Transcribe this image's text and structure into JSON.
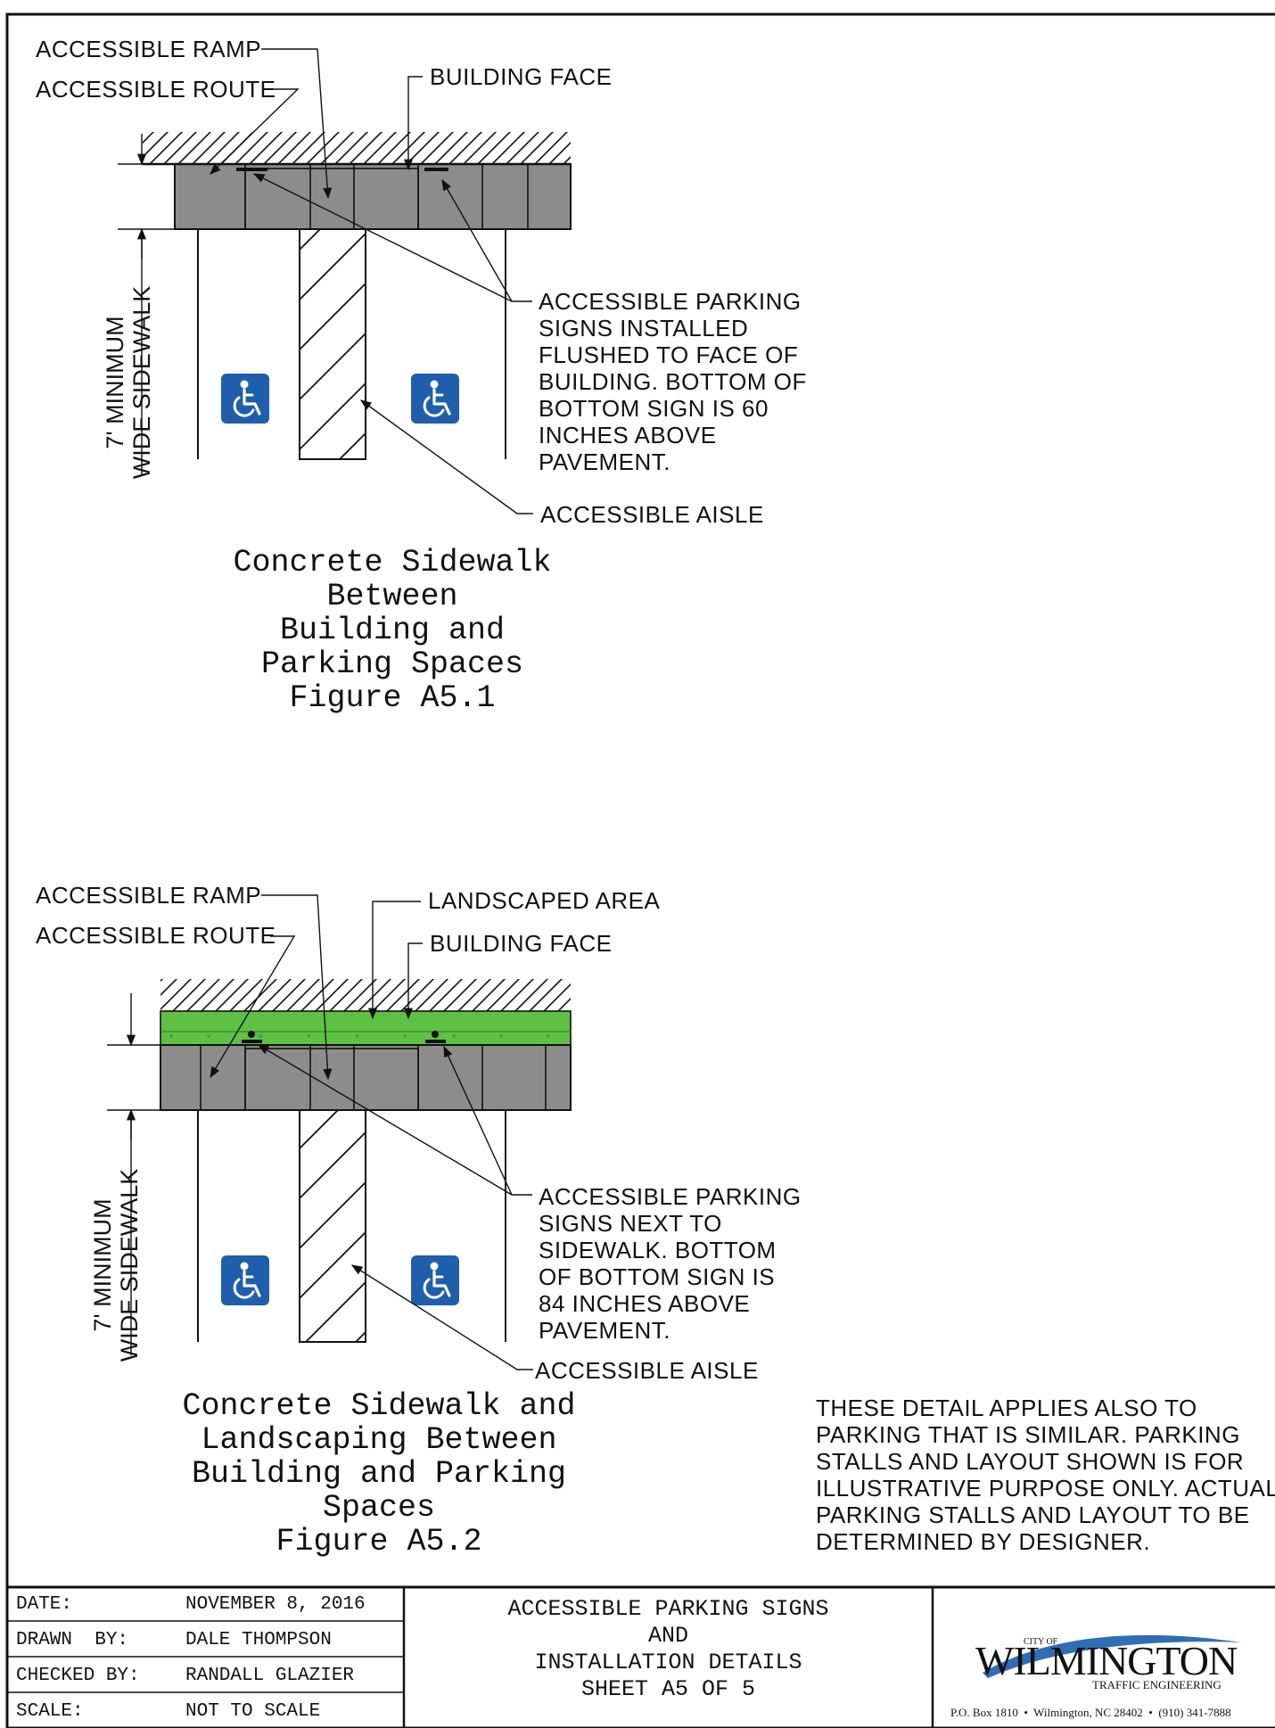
{
  "figure1": {
    "labels": {
      "ramp": "ACCESSIBLE RAMP",
      "route": "ACCESSIBLE ROUTE",
      "building_face": "BUILDING FACE",
      "aisle": "ACCESSIBLE AISLE"
    },
    "dimension": [
      "7' MINIMUM",
      "WIDE SIDEWALK"
    ],
    "sign_note": [
      "ACCESSIBLE PARKING",
      "SIGNS INSTALLED",
      "FLUSHED TO FACE OF",
      "BUILDING. BOTTOM OF",
      "BOTTOM SIGN IS 60",
      "INCHES ABOVE",
      "PAVEMENT."
    ],
    "caption": [
      "Concrete Sidewalk",
      "Between",
      "Building and",
      "Parking Spaces",
      "Figure A5.1"
    ]
  },
  "figure2": {
    "labels": {
      "ramp": "ACCESSIBLE RAMP",
      "landscaped": "LANDSCAPED AREA",
      "route": "ACCESSIBLE ROUTE",
      "building_face": "BUILDING FACE",
      "aisle": "ACCESSIBLE AISLE"
    },
    "dimension": [
      "7' MINIMUM",
      "WIDE SIDEWALK"
    ],
    "sign_note": [
      "ACCESSIBLE PARKING",
      "SIGNS NEXT TO",
      "SIDEWALK. BOTTOM",
      "OF BOTTOM SIGN IS",
      "84 INCHES ABOVE",
      "PAVEMENT."
    ],
    "caption": [
      "Concrete Sidewalk and",
      "Landscaping Between",
      "Building and Parking",
      "Spaces",
      "Figure A5.2"
    ]
  },
  "general_note": [
    "THESE DETAIL APPLIES ALSO TO",
    "PARKING THAT IS SIMILAR.   PARKING",
    "STALLS AND LAYOUT SHOWN IS FOR",
    "ILLUSTRATIVE PURPOSE ONLY. ACTUAL",
    "PARKING STALLS AND LAYOUT TO BE",
    "DETERMINED BY DESIGNER."
  ],
  "title_block": {
    "rows": [
      {
        "label": "DATE:",
        "value": "NOVEMBER 8, 2016"
      },
      {
        "label": "DRAWN  BY:",
        "value": "DALE THOMPSON"
      },
      {
        "label": "CHECKED BY:",
        "value": "RANDALL GLAZIER"
      },
      {
        "label": "SCALE:",
        "value": "NOT TO SCALE"
      }
    ],
    "title": [
      "ACCESSIBLE PARKING SIGNS",
      "AND",
      "INSTALLATION DETAILS",
      "SHEET A5 OF 5"
    ],
    "logo": {
      "city_of": "CITY OF",
      "name": "WILMINGTON",
      "sub": "TRAFFIC ENGINEERING"
    },
    "address": "P.O. Box 1810  •  Wilmington, NC 28402  •  (910) 341-7888"
  },
  "colors": {
    "sidewalk": "#8c8c8c",
    "landscape": "#5ec144",
    "accessible_sign": "#1f5eaa",
    "logo_swoosh": "#2f6db5"
  }
}
